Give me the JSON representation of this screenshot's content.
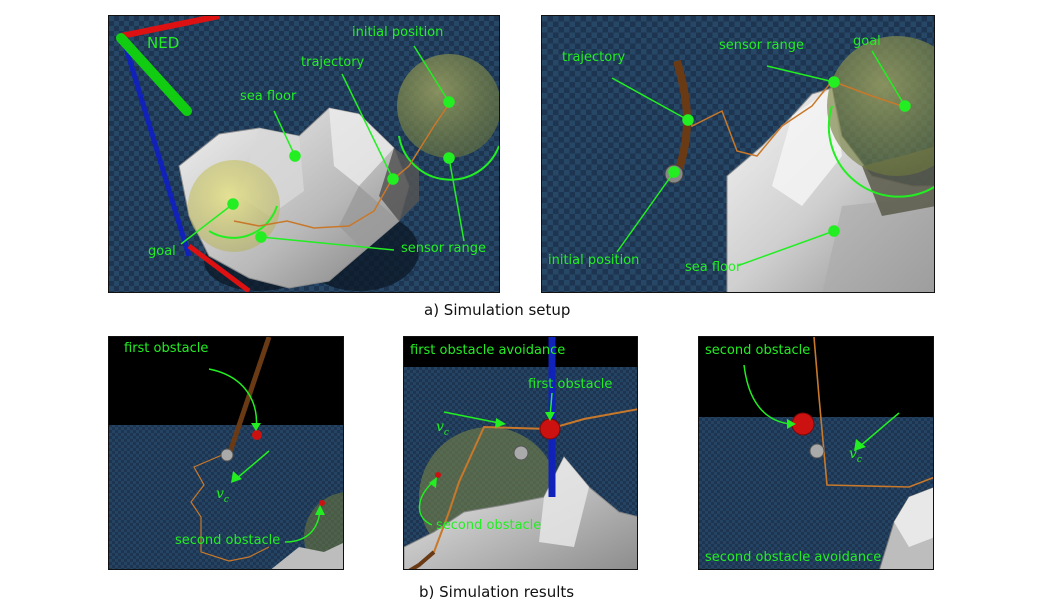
{
  "colors": {
    "label_green": "#22ee22",
    "sea_blue": "#1f3a56",
    "trajectory": "#c8782a",
    "obstacle": "#cc1111",
    "axis_red": "#dd1111",
    "axis_green": "#11cc11",
    "axis_blue": "#1122bb"
  },
  "panel_a1": {
    "ned": "NED",
    "initial_position": "initial position",
    "trajectory": "trajectory",
    "sea_floor": "sea floor",
    "goal": "goal",
    "sensor_range": "sensor range"
  },
  "panel_a2": {
    "trajectory": "trajectory",
    "sensor_range": "sensor range",
    "goal": "goal",
    "initial_position": "initial position",
    "sea_floor": "sea floor"
  },
  "panel_b1": {
    "first_obstacle": "first obstacle",
    "vc_symbol": "v",
    "vc_sub": "c",
    "second_obstacle": "second obstacle"
  },
  "panel_b2": {
    "title": "first obstacle avoidance",
    "first_obstacle": "first obstacle",
    "vc_symbol": "v",
    "vc_sub": "c",
    "second_obstacle": "second obstacle"
  },
  "panel_b3": {
    "second_obstacle": "second obstacle",
    "vc_symbol": "v",
    "vc_sub": "c",
    "title": "second obstacle avoidance"
  },
  "captions": {
    "a": "a) Simulation setup",
    "b": "b) Simulation results"
  }
}
